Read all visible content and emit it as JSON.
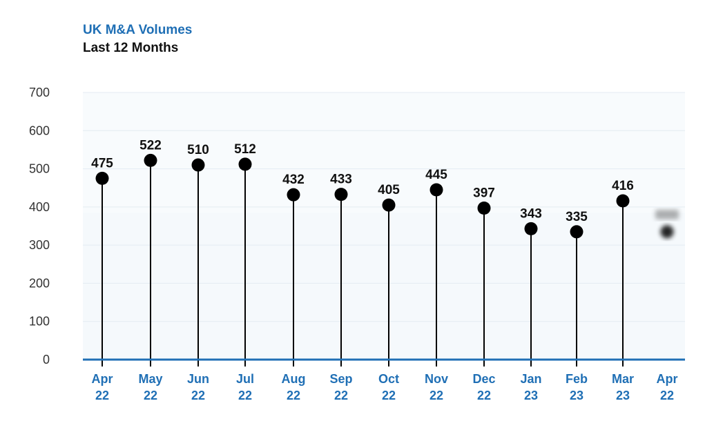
{
  "header": {
    "title": "UK M&A Volumes",
    "subtitle": "Last 12 Months"
  },
  "colors": {
    "title": "#1f6fb5",
    "axis": "#1f6fb5",
    "marker": "#000000",
    "plot_background": "#f3f8fc"
  },
  "chart_data": {
    "type": "lollipop",
    "title": "UK M&A Volumes",
    "subtitle": "Last 12 Months",
    "xlabel": "",
    "ylabel": "",
    "ylim": [
      0,
      700
    ],
    "yticks": [
      0,
      100,
      200,
      300,
      400,
      500,
      600,
      700
    ],
    "grid": true,
    "legend": "none",
    "categories": [
      [
        "Apr",
        "22"
      ],
      [
        "May",
        "22"
      ],
      [
        "Jun",
        "22"
      ],
      [
        "Jul",
        "22"
      ],
      [
        "Aug",
        "22"
      ],
      [
        "Sep",
        "22"
      ],
      [
        "Oct",
        "22"
      ],
      [
        "Nov",
        "22"
      ],
      [
        "Dec",
        "22"
      ],
      [
        "Jan",
        "23"
      ],
      [
        "Feb",
        "23"
      ],
      [
        "Mar",
        "23"
      ],
      [
        "Apr",
        "22"
      ]
    ],
    "values": [
      475,
      522,
      510,
      512,
      432,
      433,
      405,
      445,
      397,
      343,
      335,
      416,
      335
    ],
    "data_labels": [
      "475",
      "522",
      "510",
      "512",
      "432",
      "433",
      "405",
      "445",
      "397",
      "343",
      "335",
      "416",
      ""
    ],
    "blurred": [
      false,
      false,
      false,
      false,
      false,
      false,
      false,
      false,
      false,
      false,
      false,
      false,
      true
    ]
  }
}
